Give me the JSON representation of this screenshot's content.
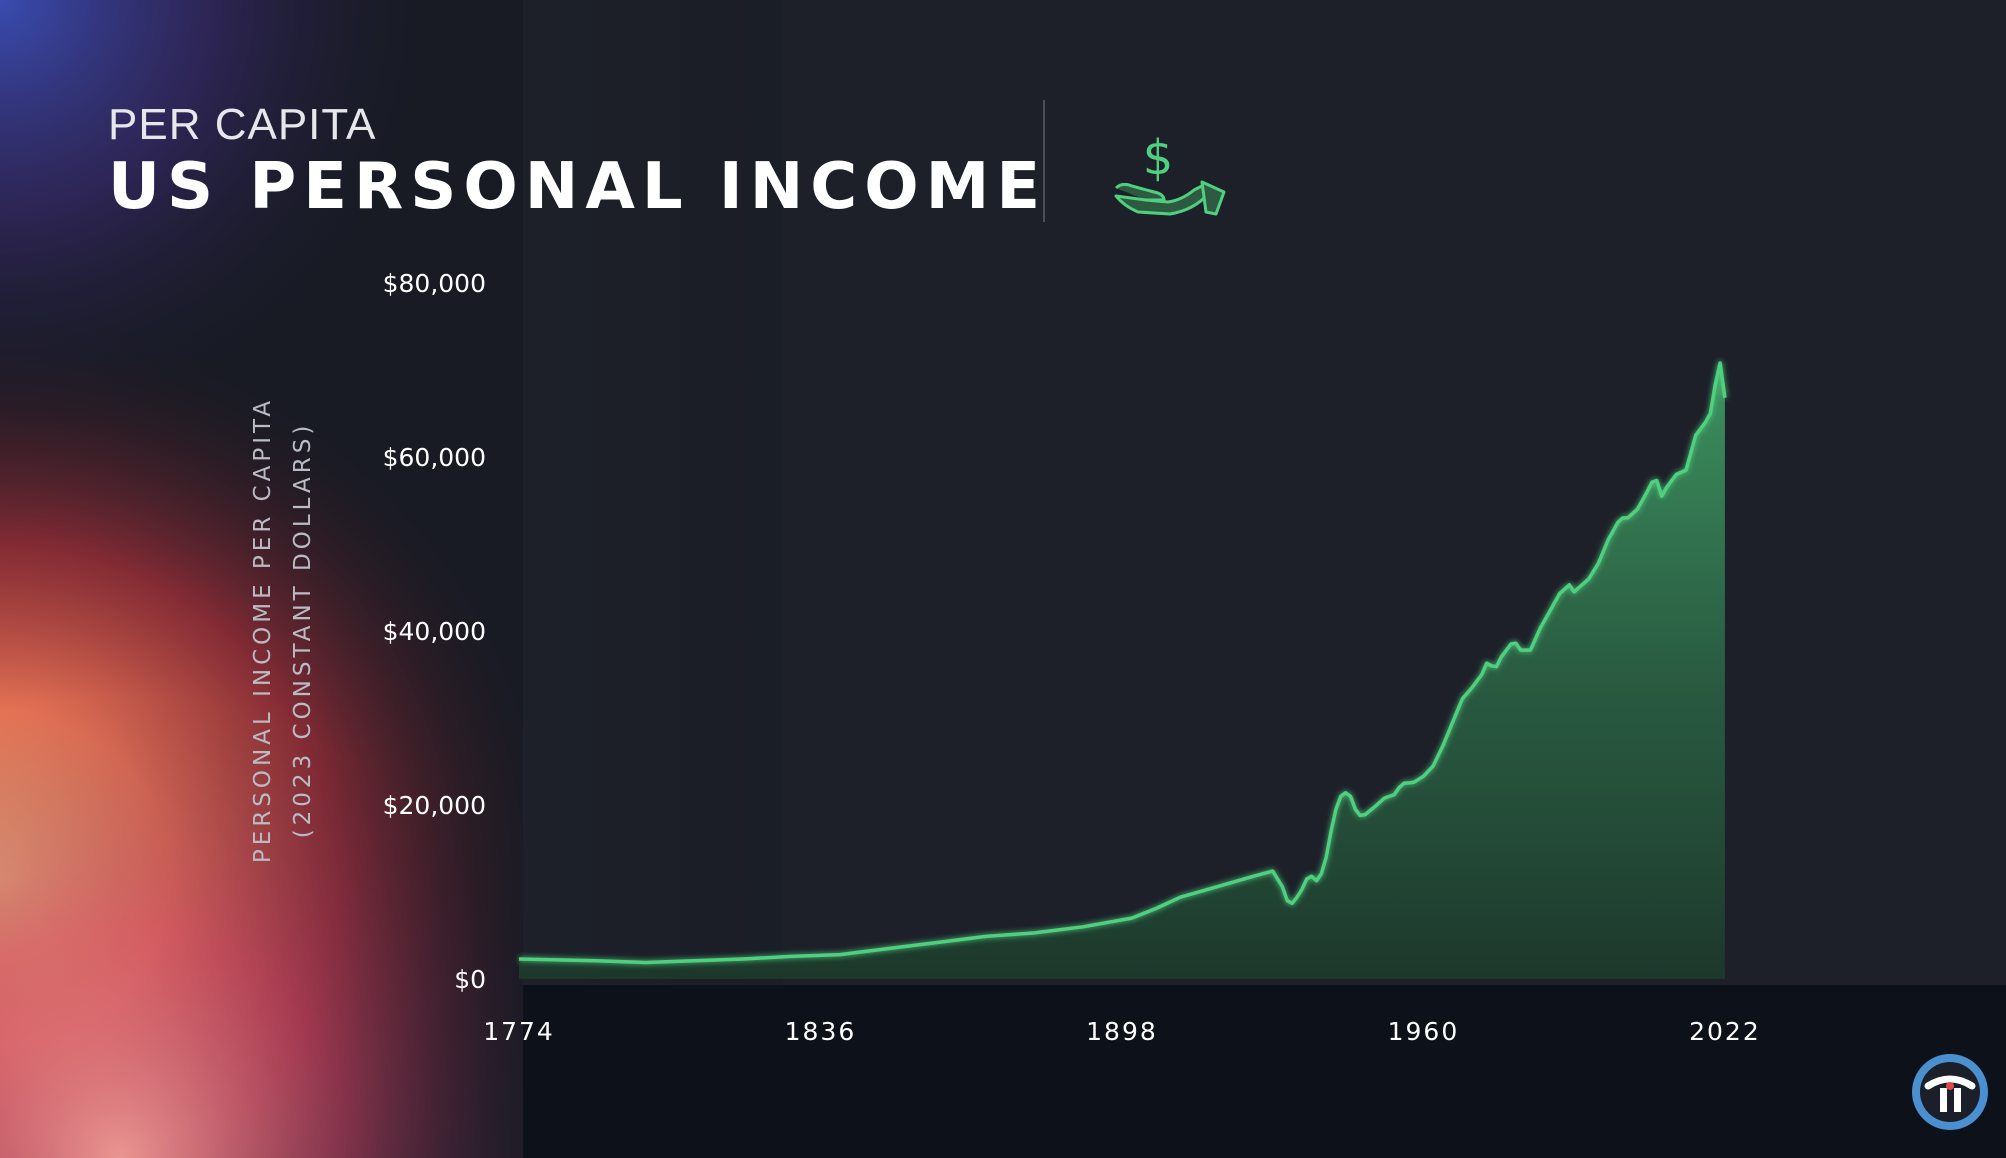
{
  "header": {
    "subtitle": "PER CAPITA",
    "title": "US PERSONAL INCOME",
    "icon": "hand-dollar-icon"
  },
  "yaxis_label": {
    "line1": "PERSONAL INCOME PER CAPITA",
    "line2": "(2023 CONSTANT DOLLARS)"
  },
  "logo": {
    "icon": "twit-logo-icon"
  },
  "colors": {
    "accent": "#4fd07f",
    "area_top": "#3f9a63",
    "background": "#161a22",
    "text": "#ffffff",
    "muted": "#b9bcc4"
  },
  "chart_data": {
    "type": "area",
    "title": "US PERSONAL INCOME",
    "subtitle": "PER CAPITA",
    "xlabel": "",
    "ylabel": "PERSONAL INCOME PER CAPITA (2023 CONSTANT DOLLARS)",
    "xlim": [
      1774,
      2036
    ],
    "ylim": [
      0,
      80000
    ],
    "x_ticks": [
      1774,
      1836,
      1898,
      1960,
      2022
    ],
    "x_tick_labels": [
      "1774",
      "1836",
      "1898",
      "1960",
      "2022"
    ],
    "y_ticks": [
      0,
      20000,
      40000,
      60000,
      80000
    ],
    "y_tick_labels": [
      "$0",
      "$20,000",
      "$40,000",
      "$60,000",
      "$80,000"
    ],
    "grid": false,
    "legend": "none",
    "series": [
      {
        "x": [
          1774,
          1790,
          1800,
          1820,
          1830,
          1840,
          1850,
          1860,
          1870,
          1880,
          1890,
          1900,
          1905,
          1910,
          1915,
          1920,
          1925,
          1929,
          1931,
          1932,
          1933,
          1934,
          1935,
          1936,
          1937,
          1938,
          1939,
          1940,
          1941,
          1942,
          1943,
          1944,
          1945,
          1946,
          1947,
          1948,
          1950,
          1952,
          1954,
          1955,
          1956,
          1958,
          1960,
          1962,
          1964,
          1966,
          1968,
          1970,
          1972,
          1973,
          1974,
          1975,
          1976,
          1978,
          1979,
          1980,
          1982,
          1984,
          1986,
          1988,
          1990,
          1991,
          1992,
          1994,
          1996,
          1998,
          2000,
          2001,
          2002,
          2004,
          2006,
          2007,
          2008,
          2009,
          2010,
          2012,
          2014,
          2016,
          2018,
          2019,
          2020,
          2021,
          2022
        ],
        "values": [
          2300,
          2100,
          1900,
          2300,
          2600,
          2800,
          3500,
          4200,
          4900,
          5300,
          6000,
          7000,
          8100,
          9400,
          10200,
          11000,
          11800,
          12400,
          10600,
          9000,
          8700,
          9400,
          10300,
          11500,
          11800,
          11300,
          12100,
          14000,
          17000,
          19500,
          21000,
          21400,
          21000,
          19500,
          18800,
          18900,
          19800,
          20800,
          21200,
          22000,
          22500,
          22600,
          23300,
          24500,
          26800,
          29500,
          32200,
          33500,
          35000,
          36300,
          36000,
          35900,
          37000,
          38500,
          38600,
          37800,
          37800,
          40300,
          42300,
          44300,
          45300,
          44500,
          45000,
          46000,
          47800,
          50500,
          52500,
          53000,
          53000,
          54000,
          56000,
          57100,
          57300,
          55500,
          56500,
          58000,
          58500,
          62500,
          64000,
          65000,
          68300,
          70800,
          66800
        ]
      }
    ]
  }
}
